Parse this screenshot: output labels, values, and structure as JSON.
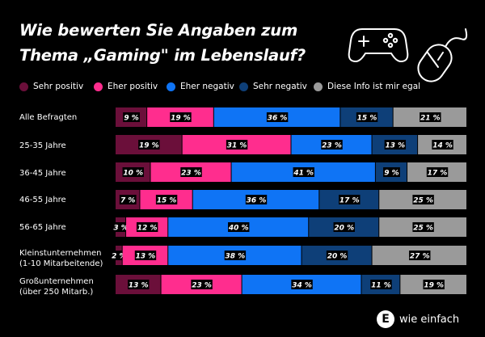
{
  "chart_data": {
    "type": "bar",
    "orientation": "horizontal-stacked-100",
    "title": "Wie bewerten Sie Angaben zum Thema „Gaming\" im Lebenslauf?",
    "title_lines": [
      "Wie bewerten Sie Angaben zum",
      "Thema „Gaming\" im Lebenslauf?"
    ],
    "categories": [
      "Alle Befragten",
      "25-35 Jahre",
      "36-45 Jahre",
      "46-55 Jahre",
      "56-65 Jahre",
      "Kleinstunternehmen\n(1-10 Mitarbeitende)",
      "Großunternehmen\n(über 250 Mitarb.)"
    ],
    "series": [
      {
        "name": "Sehr positiv",
        "color": "#6b0f3a",
        "values": [
          9,
          19,
          10,
          7,
          3,
          2,
          13
        ]
      },
      {
        "name": "Eher positiv",
        "color": "#ff2d8e",
        "values": [
          19,
          31,
          23,
          15,
          12,
          13,
          23
        ]
      },
      {
        "name": "Eher negativ",
        "color": "#0f74f5",
        "values": [
          36,
          23,
          41,
          36,
          40,
          38,
          34
        ]
      },
      {
        "name": "Sehr negativ",
        "color": "#0e3f78",
        "values": [
          15,
          13,
          9,
          17,
          20,
          20,
          11
        ]
      },
      {
        "name": "Diese Info ist mir egal",
        "color": "#9a9a9a",
        "values": [
          21,
          14,
          17,
          25,
          25,
          27,
          19
        ]
      }
    ],
    "value_suffix": " %",
    "legend_position": "top",
    "grid": false
  },
  "brand": {
    "logo_letter": "E",
    "name": "wie einfach"
  },
  "icons": [
    "gamepad-icon",
    "computer-mouse-icon"
  ],
  "colors": {
    "background": "#000000",
    "text": "#ffffff",
    "label_background": "#000000"
  }
}
